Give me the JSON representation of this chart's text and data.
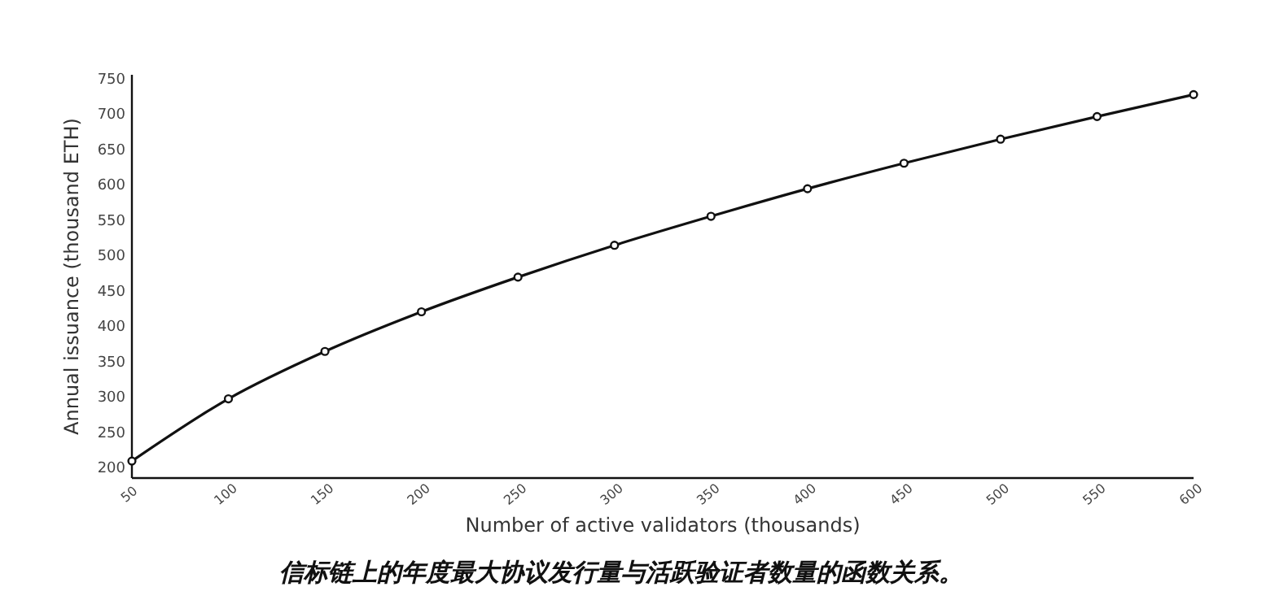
{
  "chart_data": {
    "type": "line",
    "title": "信标链上的年度最大协议发行量与活跃验证者数量的函数关系。",
    "xlabel": "Number of active validators (thousands)",
    "ylabel": "Annual issuance (thousand ETH)",
    "x": [
      50,
      100,
      150,
      200,
      250,
      300,
      350,
      400,
      450,
      500,
      550,
      600
    ],
    "series": [
      {
        "color": "#111111",
        "values": [
          209,
          297,
          364,
          420,
          469,
          514,
          555,
          594,
          630,
          664,
          696,
          727
        ]
      }
    ],
    "xlim": [
      50,
      600
    ],
    "xticks": [
      50,
      100,
      150,
      200,
      250,
      300,
      350,
      400,
      450,
      500,
      550,
      600
    ],
    "ylim": [
      185,
      755
    ],
    "yticks": [
      200,
      250,
      300,
      350,
      400,
      450,
      500,
      550,
      600,
      650,
      700,
      750
    ],
    "grid": false,
    "marker": "circle",
    "line_style": "solid"
  }
}
